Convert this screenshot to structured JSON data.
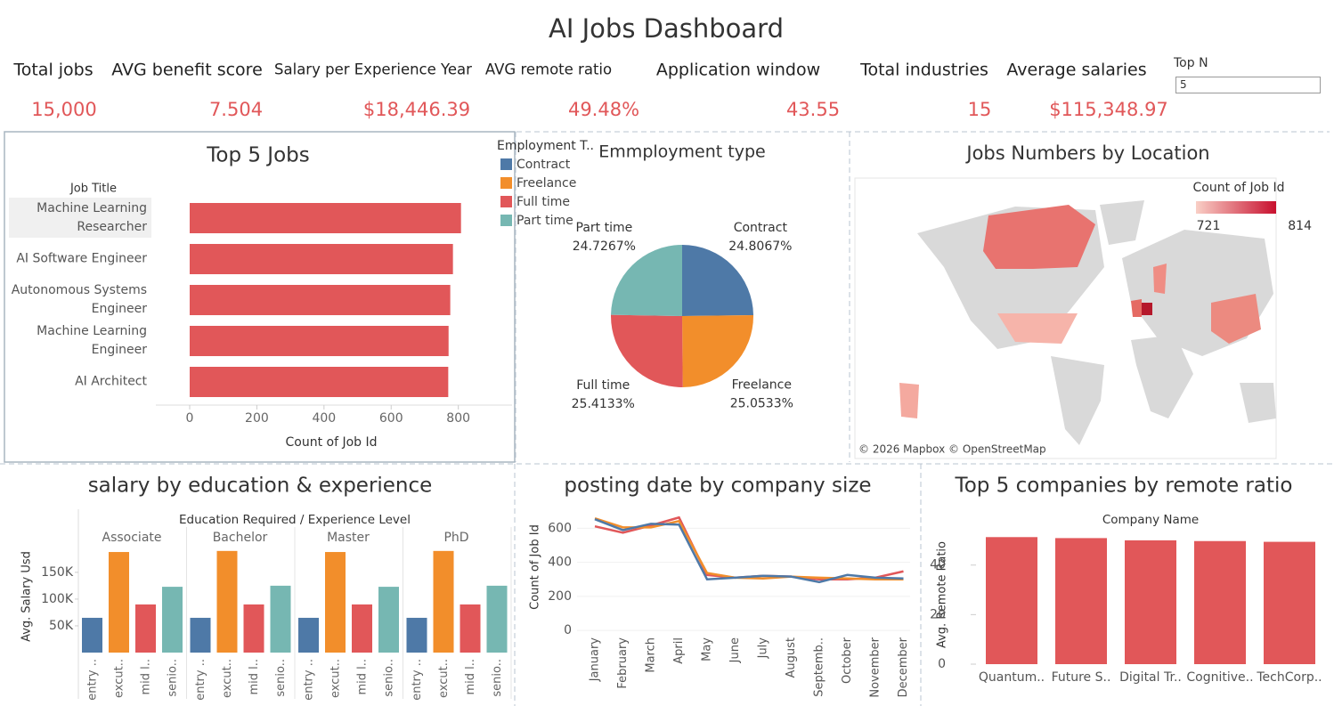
{
  "title": "AI Jobs Dashboard",
  "kpis": [
    {
      "label": "Total jobs",
      "value": "15,000"
    },
    {
      "label": "AVG benefit score",
      "value": "7.504"
    },
    {
      "label": "Salary per Experience Year",
      "value": "$18,446.39"
    },
    {
      "label": "AVG remote ratio",
      "value": "49.48%"
    },
    {
      "label": "Application window",
      "value": "43.55"
    },
    {
      "label": "Total industries",
      "value": "15"
    },
    {
      "label": "Average salaries",
      "value": "$115,348.97"
    }
  ],
  "top_n": {
    "label": "Top N",
    "value": "5"
  },
  "chart_data": [
    {
      "type": "hbar",
      "title": "Top  5 Jobs",
      "y_label": "Job Title",
      "x_label": "Count of Job Id",
      "categories": [
        "Machine Learning Researcher",
        "AI Software Engineer",
        "Autonomous Systems Engineer",
        "Machine Learning Engineer",
        "AI Architect"
      ],
      "values": [
        808,
        784,
        776,
        771,
        770
      ],
      "color": "#e15759",
      "xlim": [
        0,
        960
      ],
      "xticks": [
        0,
        200,
        400,
        600,
        800
      ]
    },
    {
      "type": "pie",
      "title": "Emmployment type",
      "legend_title": "Employment T..",
      "categories": [
        "Contract",
        "Freelance",
        "Full time",
        "Part time"
      ],
      "values": [
        24.8067,
        25.0533,
        25.4133,
        24.7267
      ],
      "value_labels": [
        "24.8067%",
        "25.0533%",
        "25.4133%",
        "24.7267%"
      ],
      "colors": [
        "#4e79a7",
        "#f28e2b",
        "#e15759",
        "#76b7b2"
      ]
    },
    {
      "type": "map",
      "title": "Jobs Numbers by Location",
      "colorbar_title": "Count of Job Id",
      "color_range": [
        721,
        814
      ],
      "colors": [
        "#f9cfc6",
        "#c8102e"
      ],
      "attribution": "© 2026 Mapbox © OpenStreetMap"
    },
    {
      "type": "facet_bar",
      "title": "salary by education & experience",
      "header": "Education Required  /  Experience Level",
      "y_label": "Avg. Salary Usd",
      "categories": [
        "entry ..",
        "excut..",
        "mid l..",
        "senio.."
      ],
      "colors": [
        "#4e79a7",
        "#f28e2b",
        "#e15759",
        "#76b7b2"
      ],
      "facets": [
        {
          "name": "Associate",
          "values": [
            65000,
            188000,
            90000,
            123000
          ]
        },
        {
          "name": "Bachelor",
          "values": [
            65000,
            190000,
            90000,
            125000
          ]
        },
        {
          "name": "Master",
          "values": [
            65000,
            188000,
            90000,
            123000
          ]
        },
        {
          "name": "PhD",
          "values": [
            65000,
            190000,
            90000,
            125000
          ]
        }
      ],
      "ylim": [
        0,
        233000
      ],
      "yticks": [
        {
          "value": 50000,
          "label": "50K"
        },
        {
          "value": 100000,
          "label": "100K"
        },
        {
          "value": 150000,
          "label": "150K"
        }
      ]
    },
    {
      "type": "line",
      "title": "posting date by company size",
      "y_label": "Count of Job Id",
      "categories": [
        "January",
        "February",
        "March",
        "April",
        "May",
        "June",
        "July",
        "August",
        "Septemb..",
        "October",
        "November",
        "December"
      ],
      "series": [
        {
          "color": "#e15759",
          "values": [
            611,
            574,
            616,
            663,
            326,
            310,
            321,
            316,
            300,
            300,
            310,
            347
          ]
        },
        {
          "color": "#f28e2b",
          "values": [
            658,
            605,
            605,
            642,
            337,
            310,
            305,
            316,
            310,
            305,
            300,
            300
          ]
        },
        {
          "color": "#4e79a7",
          "values": [
            653,
            589,
            626,
            621,
            300,
            310,
            321,
            316,
            284,
            326,
            310,
            305
          ]
        }
      ],
      "ylim": [
        -20,
        680
      ],
      "yticks": [
        0,
        200,
        400,
        600
      ]
    },
    {
      "type": "bar",
      "title": "Top 5 companies by remote ratio",
      "x_label": "Company Name",
      "y_label": "Avg. Remote Ratio",
      "categories": [
        "Quantum..",
        "Future S..",
        "Digital Tr..",
        "Cognitive..",
        "TechCorp.."
      ],
      "values": [
        51.3,
        50.9,
        50.0,
        49.7,
        49.4
      ],
      "color": "#e15759",
      "ylim": [
        0,
        55
      ],
      "yticks": [
        0,
        20,
        40
      ]
    }
  ]
}
